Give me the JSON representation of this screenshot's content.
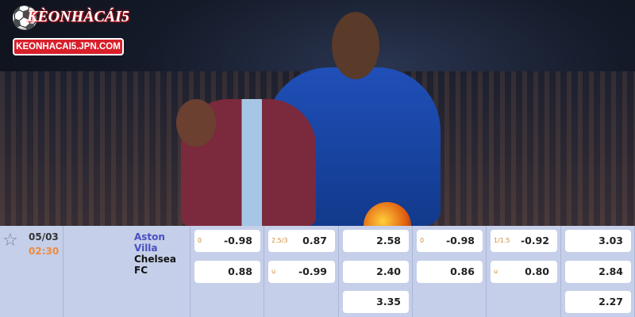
{
  "logo": {
    "title": "KÈONHÀCÁI5",
    "url": "KEONHACAI5.JPN.COM"
  },
  "match": {
    "date": "05/03",
    "time": "02:30",
    "home": "Aston Villa",
    "away": "Chelsea FC",
    "favorite_icon": "star-outline-icon",
    "columns": [
      {
        "cells": [
          {
            "hc": "0",
            "v": "-0.98"
          },
          {
            "hc": "",
            "v": "0.88"
          }
        ]
      },
      {
        "cells": [
          {
            "hc": "2.5/3",
            "v": "0.87"
          },
          {
            "hc": "u",
            "v": "-0.99"
          }
        ]
      },
      {
        "cells": [
          {
            "hc": "",
            "v": "2.58"
          },
          {
            "hc": "",
            "v": "2.40"
          },
          {
            "hc": "",
            "v": "3.35"
          }
        ]
      },
      {
        "cells": [
          {
            "hc": "0",
            "v": "-0.98"
          },
          {
            "hc": "",
            "v": "0.86"
          }
        ]
      },
      {
        "cells": [
          {
            "hc": "1/1.5",
            "v": "-0.92"
          },
          {
            "hc": "u",
            "v": "0.80"
          }
        ]
      },
      {
        "cells": [
          {
            "hc": "",
            "v": "3.03"
          },
          {
            "hc": "",
            "v": "2.84"
          },
          {
            "hc": "",
            "v": "2.27"
          }
        ]
      }
    ]
  },
  "colors": {
    "accent": "#4a4fc0",
    "time": "#f08a3c",
    "handicap": "#d08a3a",
    "panel": "#c5cfe9"
  }
}
